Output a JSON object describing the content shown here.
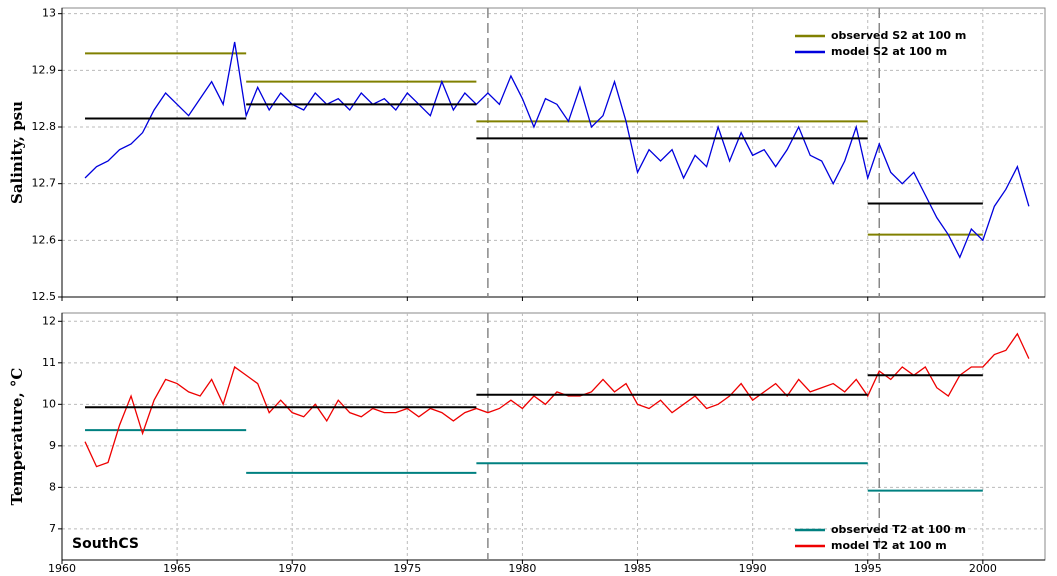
{
  "chart_data": [
    {
      "type": "line",
      "ylabel": "Salinity, psu",
      "xlim": [
        1960,
        2002.7
      ],
      "ylim": [
        12.5,
        13.01
      ],
      "xticks": [
        1960,
        1965,
        1970,
        1975,
        1980,
        1985,
        1990,
        1995,
        2000
      ],
      "yticks": [
        12.5,
        {
          "value": 12.6,
          "label": "12.6"
        },
        {
          "value": 12.7,
          "label": "12.7"
        },
        {
          "value": 12.8,
          "label": "12.8"
        },
        {
          "value": 12.9,
          "label": "12.9"
        },
        13
      ],
      "grid": true,
      "legend": "upper right",
      "vlines": [
        1978.5,
        1995.5
      ],
      "series": [
        {
          "name": "observed S2 at 100 m",
          "color": "#808000",
          "style": "segments",
          "starts": [
            1961,
            1968,
            1978,
            1995
          ],
          "ends": [
            1968,
            1978,
            1995,
            2000
          ],
          "values": [
            12.93,
            12.88,
            12.81,
            12.61
          ]
        },
        {
          "name": "model S2 at 100 m",
          "color": "#0000dd",
          "style": "line",
          "x": [
            1961,
            1961.5,
            1962,
            1962.5,
            1963,
            1963.5,
            1964,
            1964.5,
            1965,
            1965.5,
            1966,
            1966.5,
            1967,
            1967.5,
            1968,
            1968.5,
            1969,
            1969.5,
            1970,
            1970.5,
            1971,
            1971.5,
            1972,
            1972.5,
            1973,
            1973.5,
            1974,
            1974.5,
            1975,
            1975.5,
            1976,
            1976.5,
            1977,
            1977.5,
            1978,
            1978.5,
            1979,
            1979.5,
            1980,
            1980.5,
            1981,
            1981.5,
            1982,
            1982.5,
            1983,
            1983.5,
            1984,
            1984.5,
            1985,
            1985.5,
            1986,
            1986.5,
            1987,
            1987.5,
            1988,
            1988.5,
            1989,
            1989.5,
            1990,
            1990.5,
            1991,
            1991.5,
            1992,
            1992.5,
            1993,
            1993.5,
            1994,
            1994.5,
            1995,
            1995.5,
            1996,
            1996.5,
            1997,
            1997.5,
            1998,
            1998.5,
            1999,
            1999.5,
            2000,
            2000.5,
            2001,
            2001.5,
            2002
          ],
          "values": [
            12.71,
            12.73,
            12.74,
            12.76,
            12.77,
            12.79,
            12.83,
            12.86,
            12.84,
            12.82,
            12.85,
            12.88,
            12.84,
            12.95,
            12.82,
            12.87,
            12.83,
            12.86,
            12.84,
            12.83,
            12.86,
            12.84,
            12.85,
            12.83,
            12.86,
            12.84,
            12.85,
            12.83,
            12.86,
            12.84,
            12.82,
            12.88,
            12.83,
            12.86,
            12.84,
            12.86,
            12.84,
            12.89,
            12.85,
            12.8,
            12.85,
            12.84,
            12.81,
            12.87,
            12.8,
            12.82,
            12.88,
            12.81,
            12.72,
            12.76,
            12.74,
            12.76,
            12.71,
            12.75,
            12.73,
            12.8,
            12.74,
            12.79,
            12.75,
            12.76,
            12.73,
            12.76,
            12.8,
            12.75,
            12.74,
            12.7,
            12.74,
            12.8,
            12.71,
            12.77,
            12.72,
            12.7,
            12.72,
            12.68,
            12.64,
            12.61,
            12.57,
            12.62,
            12.6,
            12.66,
            12.69,
            12.73,
            12.66
          ]
        },
        {
          "color": "#000000",
          "style": "segments",
          "starts": [
            1961,
            1968,
            1978,
            1995
          ],
          "ends": [
            1968,
            1978,
            1995,
            2000
          ],
          "values": [
            12.815,
            12.84,
            12.78,
            12.665
          ]
        }
      ]
    },
    {
      "type": "line",
      "ylabel": "Temperature, °C",
      "annotation": "SouthCS",
      "xlim": [
        1960,
        2002.7
      ],
      "ylim": [
        6.25,
        12.2
      ],
      "xticks": [
        1960,
        1965,
        1970,
        1975,
        1980,
        1985,
        1990,
        1995,
        2000
      ],
      "yticks": [
        7,
        8,
        9,
        10,
        11,
        12
      ],
      "grid": true,
      "legend": "lower right",
      "vlines": [
        1978.5,
        1995.5
      ],
      "series": [
        {
          "name": "observed T2 at 100 m",
          "color": "#008080",
          "style": "segments",
          "starts": [
            1961,
            1968,
            1978,
            1995
          ],
          "ends": [
            1968,
            1978,
            1995,
            2000
          ],
          "values": [
            9.38,
            8.35,
            8.58,
            7.92
          ]
        },
        {
          "name": "model T2 at 100 m",
          "color": "#ee0000",
          "style": "line",
          "x": [
            1961,
            1961.5,
            1962,
            1962.5,
            1963,
            1963.5,
            1964,
            1964.5,
            1965,
            1965.5,
            1966,
            1966.5,
            1967,
            1967.5,
            1968,
            1968.5,
            1969,
            1969.5,
            1970,
            1970.5,
            1971,
            1971.5,
            1972,
            1972.5,
            1973,
            1973.5,
            1974,
            1974.5,
            1975,
            1975.5,
            1976,
            1976.5,
            1977,
            1977.5,
            1978,
            1978.5,
            1979,
            1979.5,
            1980,
            1980.5,
            1981,
            1981.5,
            1982,
            1982.5,
            1983,
            1983.5,
            1984,
            1984.5,
            1985,
            1985.5,
            1986,
            1986.5,
            1987,
            1987.5,
            1988,
            1988.5,
            1989,
            1989.5,
            1990,
            1990.5,
            1991,
            1991.5,
            1992,
            1992.5,
            1993,
            1993.5,
            1994,
            1994.5,
            1995,
            1995.5,
            1996,
            1996.5,
            1997,
            1997.5,
            1998,
            1998.5,
            1999,
            1999.5,
            2000,
            2000.5,
            2001,
            2001.5,
            2002
          ],
          "values": [
            9.1,
            8.5,
            8.6,
            9.5,
            10.2,
            9.3,
            10.1,
            10.6,
            10.5,
            10.3,
            10.2,
            10.6,
            10.0,
            10.9,
            10.7,
            10.5,
            9.8,
            10.1,
            9.8,
            9.7,
            10.0,
            9.6,
            10.1,
            9.8,
            9.7,
            9.9,
            9.8,
            9.8,
            9.9,
            9.7,
            9.9,
            9.8,
            9.6,
            9.8,
            9.9,
            9.8,
            9.9,
            10.1,
            9.9,
            10.2,
            10.0,
            10.3,
            10.2,
            10.2,
            10.3,
            10.6,
            10.3,
            10.5,
            10.0,
            9.9,
            10.1,
            9.8,
            10.0,
            10.2,
            9.9,
            10.0,
            10.2,
            10.5,
            10.1,
            10.3,
            10.5,
            10.2,
            10.6,
            10.3,
            10.4,
            10.5,
            10.3,
            10.6,
            10.2,
            10.8,
            10.6,
            10.9,
            10.7,
            10.9,
            10.4,
            10.2,
            10.7,
            10.9,
            10.9,
            11.2,
            11.3,
            11.7,
            11.1
          ]
        },
        {
          "color": "#000000",
          "style": "segments",
          "starts": [
            1961,
            1968,
            1978,
            1995
          ],
          "ends": [
            1968,
            1978,
            1995,
            2000
          ],
          "values": [
            9.93,
            9.93,
            10.23,
            10.7
          ]
        }
      ]
    }
  ]
}
